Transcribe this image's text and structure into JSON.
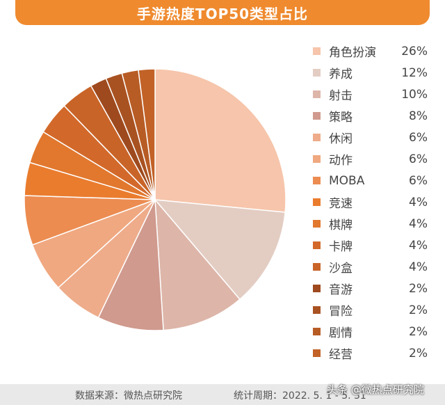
{
  "title": "手游热度TOP50类型占比",
  "chart_data": {
    "type": "pie",
    "title": "手游热度TOP50类型占比",
    "legend_position": "right",
    "slices": [
      {
        "label": "角色扮演",
        "value": 26,
        "value_label": "26%",
        "color": "#f6c5ab"
      },
      {
        "label": "养成",
        "value": 12,
        "value_label": "12%",
        "color": "#e3cdc3"
      },
      {
        "label": "射击",
        "value": 10,
        "value_label": "10%",
        "color": "#ddb6a9"
      },
      {
        "label": "策略",
        "value": 8,
        "value_label": "8%",
        "color": "#d09a8e"
      },
      {
        "label": "休闲",
        "value": 6,
        "value_label": "6%",
        "color": "#eeac8b"
      },
      {
        "label": "动作",
        "value": 6,
        "value_label": "6%",
        "color": "#f0a880"
      },
      {
        "label": "MOBA",
        "value": 6,
        "value_label": "6%",
        "color": "#ec8c51"
      },
      {
        "label": "竞速",
        "value": 4,
        "value_label": "4%",
        "color": "#ea7c2e"
      },
      {
        "label": "棋牌",
        "value": 4,
        "value_label": "4%",
        "color": "#e1782e"
      },
      {
        "label": "卡牌",
        "value": 4,
        "value_label": "4%",
        "color": "#d2692a"
      },
      {
        "label": "沙盒",
        "value": 4,
        "value_label": "4%",
        "color": "#c96428"
      },
      {
        "label": "音游",
        "value": 2,
        "value_label": "2%",
        "color": "#9e4a1e"
      },
      {
        "label": "冒险",
        "value": 2,
        "value_label": "2%",
        "color": "#a95221"
      },
      {
        "label": "剧情",
        "value": 2,
        "value_label": "2%",
        "color": "#b85c25"
      },
      {
        "label": "经营",
        "value": 2,
        "value_label": "2%",
        "color": "#c26227"
      }
    ]
  },
  "footer": {
    "source": "数据来源：微热点研究院",
    "period": "统计周期：2022. 5. 1 - 5. 31"
  },
  "watermark": "头条 @微热点研究院"
}
